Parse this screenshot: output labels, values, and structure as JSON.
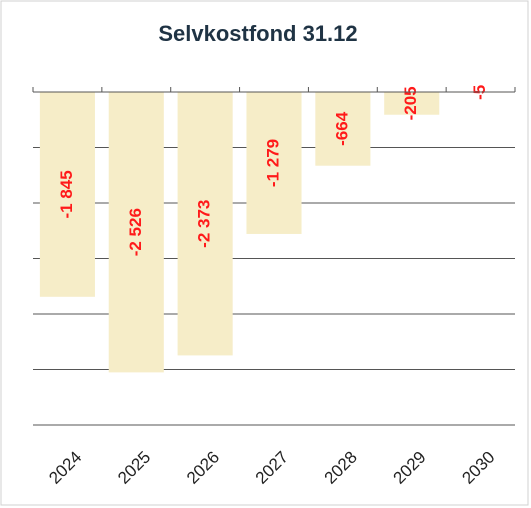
{
  "chart_data": {
    "type": "bar",
    "title": "Selvkostfond 31.12",
    "categories": [
      "2024",
      "2025",
      "2026",
      "2027",
      "2028",
      "2029",
      "2030"
    ],
    "values": [
      -1845,
      -2526,
      -2373,
      -1279,
      -664,
      -205,
      -5
    ],
    "value_labels": [
      "-1 845",
      "-2 526",
      "-2 373",
      "-1 279",
      "-664",
      "-205",
      "-5"
    ],
    "color": "#f6edc8",
    "label_color": "#ff1a1a",
    "ylim": [
      -3000,
      0
    ],
    "yticks": [
      0,
      -500,
      -1000,
      -1500,
      -2000,
      -2500,
      -3000
    ],
    "grid": true
  }
}
